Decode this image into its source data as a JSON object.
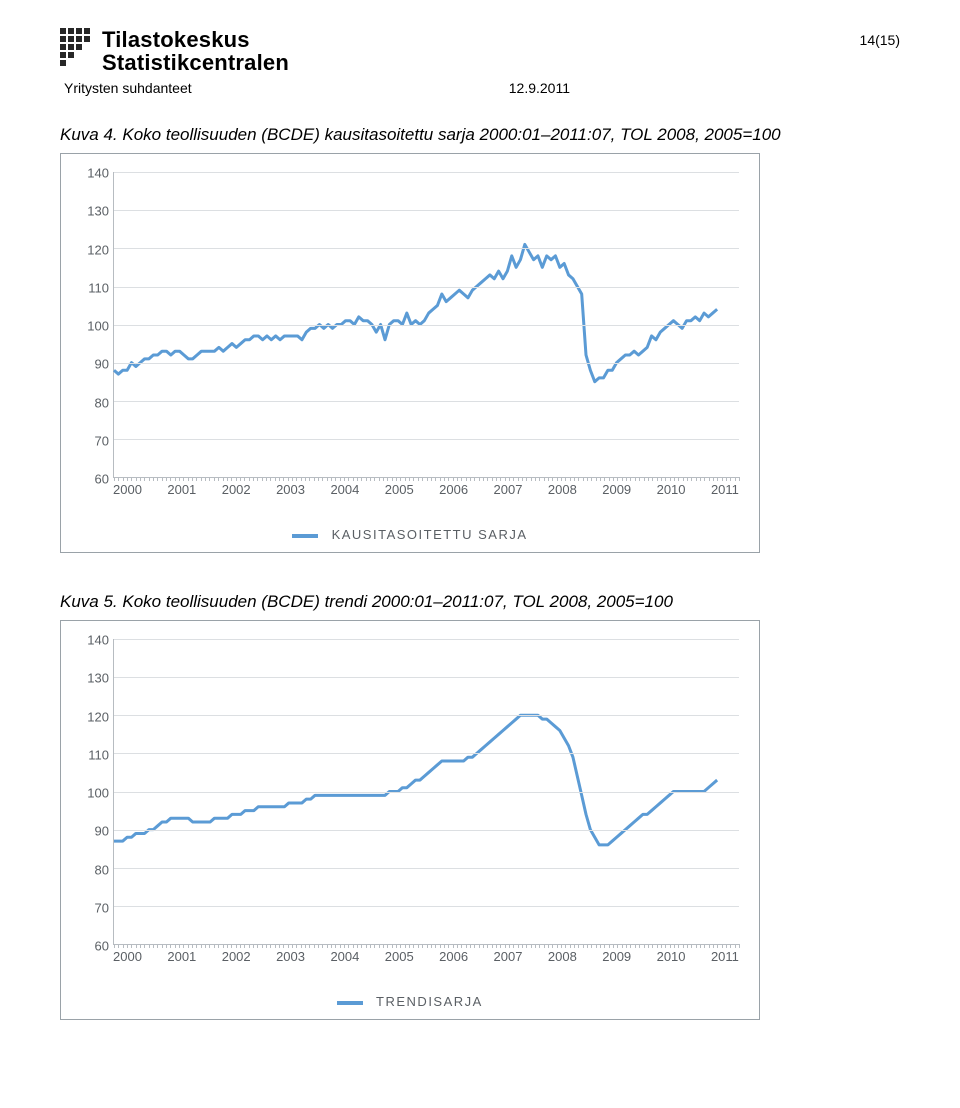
{
  "header": {
    "logo_fi": "Tilastokeskus",
    "logo_sv": "Statistikcentralen",
    "page_number": "14(15)",
    "section": "Yritysten suhdanteet",
    "date": "12.9.2011"
  },
  "colors": {
    "series": "#5b9bd5",
    "grid": "#dcdfe2",
    "axis": "#b7bcc1",
    "text_muted": "#5a5f64",
    "frame": "#9aa2a8",
    "logo": "#272727"
  },
  "chart1": {
    "caption": "Kuva 4. Koko teollisuuden (BCDE) kausitasoitettu sarja 2000:01–2011:07, TOL 2008, 2005=100",
    "legend": "KAUSITASOITETTU  SARJA",
    "y": {
      "min": 60,
      "max": 140,
      "step": 10,
      "labels": [
        "60",
        "70",
        "80",
        "90",
        "100",
        "110",
        "120",
        "130",
        "140"
      ]
    },
    "x": {
      "labels": [
        "2000",
        "2001",
        "2002",
        "2003",
        "2004",
        "2005",
        "2006",
        "2007",
        "2008",
        "2009",
        "2010",
        "2011"
      ],
      "months": 144
    },
    "values": [
      88,
      87,
      88,
      88,
      90,
      89,
      90,
      91,
      91,
      92,
      92,
      93,
      93,
      92,
      93,
      93,
      92,
      91,
      91,
      92,
      93,
      93,
      93,
      93,
      94,
      93,
      94,
      95,
      94,
      95,
      96,
      96,
      97,
      97,
      96,
      97,
      96,
      97,
      96,
      97,
      97,
      97,
      97,
      96,
      98,
      99,
      99,
      100,
      99,
      100,
      99,
      100,
      100,
      101,
      101,
      100,
      102,
      101,
      101,
      100,
      98,
      100,
      96,
      100,
      101,
      101,
      100,
      103,
      100,
      101,
      100,
      101,
      103,
      104,
      105,
      108,
      106,
      107,
      108,
      109,
      108,
      107,
      109,
      110,
      111,
      112,
      113,
      112,
      114,
      112,
      114,
      118,
      115,
      117,
      121,
      119,
      117,
      118,
      115,
      118,
      117,
      118,
      115,
      116,
      113,
      112,
      110,
      108,
      92,
      88,
      85,
      86,
      86,
      88,
      88,
      90,
      91,
      92,
      92,
      93,
      92,
      93,
      94,
      97,
      96,
      98,
      99,
      100,
      101,
      100,
      99,
      101,
      101,
      102,
      101,
      103,
      102,
      103,
      104
    ]
  },
  "chart2": {
    "caption": "Kuva 5. Koko teollisuuden (BCDE) trendi 2000:01–2011:07, TOL 2008, 2005=100",
    "legend": "TRENDISARJA",
    "y": {
      "min": 60,
      "max": 140,
      "step": 10,
      "labels": [
        "60",
        "70",
        "80",
        "90",
        "100",
        "110",
        "120",
        "130",
        "140"
      ]
    },
    "x": {
      "labels": [
        "2000",
        "2001",
        "2002",
        "2003",
        "2004",
        "2005",
        "2006",
        "2007",
        "2008",
        "2009",
        "2010",
        "2011"
      ],
      "months": 144
    },
    "values": [
      87,
      87,
      87,
      88,
      88,
      89,
      89,
      89,
      90,
      90,
      91,
      92,
      92,
      93,
      93,
      93,
      93,
      93,
      92,
      92,
      92,
      92,
      92,
      93,
      93,
      93,
      93,
      94,
      94,
      94,
      95,
      95,
      95,
      96,
      96,
      96,
      96,
      96,
      96,
      96,
      97,
      97,
      97,
      97,
      98,
      98,
      99,
      99,
      99,
      99,
      99,
      99,
      99,
      99,
      99,
      99,
      99,
      99,
      99,
      99,
      99,
      99,
      99,
      100,
      100,
      100,
      101,
      101,
      102,
      103,
      103,
      104,
      105,
      106,
      107,
      108,
      108,
      108,
      108,
      108,
      108,
      109,
      109,
      110,
      111,
      112,
      113,
      114,
      115,
      116,
      117,
      118,
      119,
      120,
      120,
      120,
      120,
      120,
      119,
      119,
      118,
      117,
      116,
      114,
      112,
      109,
      104,
      99,
      94,
      90,
      88,
      86,
      86,
      86,
      87,
      88,
      89,
      90,
      91,
      92,
      93,
      94,
      94,
      95,
      96,
      97,
      98,
      99,
      100,
      100,
      100,
      100,
      100,
      100,
      100,
      100,
      101,
      102,
      103
    ]
  }
}
